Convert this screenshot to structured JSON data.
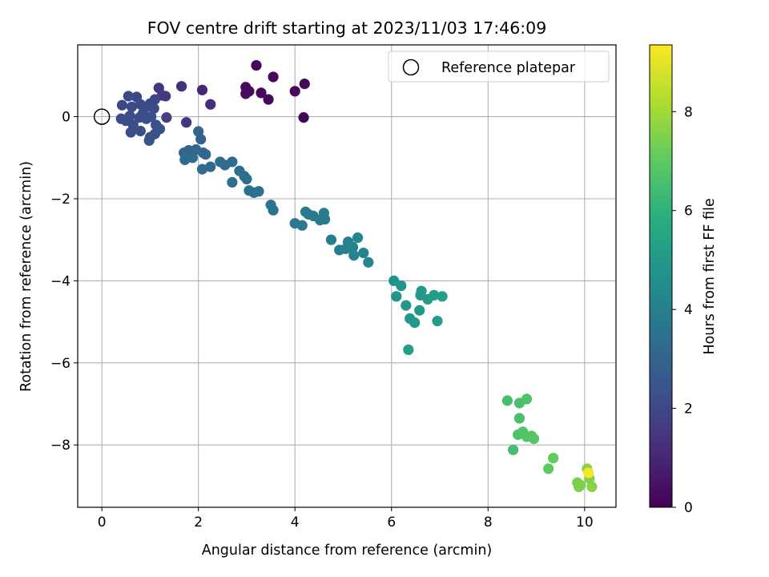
{
  "chart_data": {
    "type": "scatter",
    "title": "FOV centre drift starting at 2023/11/03 17:46:09",
    "xlabel": "Angular distance from reference (arcmin)",
    "ylabel": "Rotation from reference (arcmin)",
    "xlim": [
      -0.5,
      10.65
    ],
    "ylim": [
      -9.52,
      1.75
    ],
    "xticks": [
      0,
      2,
      4,
      6,
      8,
      10
    ],
    "yticks": [
      0,
      -2,
      -4,
      -6,
      -8
    ],
    "grid": true,
    "legend": {
      "position": "top-right",
      "entries": [
        "Reference platepar"
      ]
    },
    "reference_point": {
      "x": 0,
      "y": 0
    },
    "colorbar": {
      "label": "Hours from first FF file",
      "lim": [
        0,
        9.35
      ],
      "ticks": [
        0,
        2,
        4,
        6,
        8
      ],
      "colormap": "viridis"
    },
    "points": [
      {
        "x": 3.2,
        "y": 1.25,
        "h": 0.2
      },
      {
        "x": 3.55,
        "y": 0.97,
        "h": 0.2
      },
      {
        "x": 2.98,
        "y": 0.72,
        "h": 0.3
      },
      {
        "x": 3.05,
        "y": 0.62,
        "h": 0.3
      },
      {
        "x": 2.98,
        "y": 0.56,
        "h": 0.3
      },
      {
        "x": 3.3,
        "y": 0.58,
        "h": 0.2
      },
      {
        "x": 3.45,
        "y": 0.42,
        "h": 0.2
      },
      {
        "x": 4.0,
        "y": 0.62,
        "h": 0.2
      },
      {
        "x": 4.2,
        "y": 0.8,
        "h": 0.2
      },
      {
        "x": 4.18,
        "y": -0.02,
        "h": 0.1
      },
      {
        "x": 2.08,
        "y": 0.65,
        "h": 1.0
      },
      {
        "x": 2.25,
        "y": 0.3,
        "h": 1.2
      },
      {
        "x": 1.65,
        "y": 0.74,
        "h": 1.3
      },
      {
        "x": 1.18,
        "y": 0.7,
        "h": 1.5
      },
      {
        "x": 1.25,
        "y": 0.52,
        "h": 1.6
      },
      {
        "x": 1.32,
        "y": 0.5,
        "h": 1.6
      },
      {
        "x": 1.75,
        "y": -0.14,
        "h": 1.4
      },
      {
        "x": 1.34,
        "y": -0.02,
        "h": 1.8
      },
      {
        "x": 0.55,
        "y": 0.5,
        "h": 2.0
      },
      {
        "x": 0.72,
        "y": 0.48,
        "h": 2.0
      },
      {
        "x": 0.42,
        "y": 0.28,
        "h": 2.0
      },
      {
        "x": 0.62,
        "y": 0.24,
        "h": 2.1
      },
      {
        "x": 0.8,
        "y": 0.3,
        "h": 2.1
      },
      {
        "x": 0.9,
        "y": 0.22,
        "h": 2.1
      },
      {
        "x": 1.0,
        "y": 0.32,
        "h": 2.1
      },
      {
        "x": 1.08,
        "y": 0.2,
        "h": 2.1
      },
      {
        "x": 1.1,
        "y": 0.42,
        "h": 2.0
      },
      {
        "x": 0.4,
        "y": -0.05,
        "h": 2.2
      },
      {
        "x": 0.5,
        "y": -0.1,
        "h": 2.2
      },
      {
        "x": 0.58,
        "y": 0.02,
        "h": 2.2
      },
      {
        "x": 0.65,
        "y": -0.2,
        "h": 2.2
      },
      {
        "x": 0.78,
        "y": -0.02,
        "h": 2.2
      },
      {
        "x": 0.85,
        "y": 0.08,
        "h": 2.2
      },
      {
        "x": 0.92,
        "y": -0.05,
        "h": 2.2
      },
      {
        "x": 1.02,
        "y": 0.0,
        "h": 2.2
      },
      {
        "x": 0.6,
        "y": -0.38,
        "h": 2.2
      },
      {
        "x": 0.8,
        "y": -0.35,
        "h": 2.2
      },
      {
        "x": 1.0,
        "y": -0.5,
        "h": 2.3
      },
      {
        "x": 0.98,
        "y": -0.58,
        "h": 2.3
      },
      {
        "x": 1.1,
        "y": -0.42,
        "h": 2.3
      },
      {
        "x": 1.12,
        "y": -0.2,
        "h": 2.3
      },
      {
        "x": 1.2,
        "y": -0.3,
        "h": 2.3
      },
      {
        "x": 2.0,
        "y": -0.36,
        "h": 3.0
      },
      {
        "x": 2.05,
        "y": -0.55,
        "h": 3.0
      },
      {
        "x": 1.8,
        "y": -0.82,
        "h": 3.0
      },
      {
        "x": 1.95,
        "y": -0.8,
        "h": 3.1
      },
      {
        "x": 2.1,
        "y": -0.88,
        "h": 3.1
      },
      {
        "x": 2.15,
        "y": -0.92,
        "h": 3.1
      },
      {
        "x": 1.7,
        "y": -0.88,
        "h": 3.1
      },
      {
        "x": 1.72,
        "y": -1.05,
        "h": 3.2
      },
      {
        "x": 1.88,
        "y": -1.0,
        "h": 3.2
      },
      {
        "x": 2.08,
        "y": -1.28,
        "h": 3.2
      },
      {
        "x": 2.25,
        "y": -1.22,
        "h": 3.2
      },
      {
        "x": 2.45,
        "y": -1.1,
        "h": 3.3
      },
      {
        "x": 2.55,
        "y": -1.18,
        "h": 3.3
      },
      {
        "x": 2.7,
        "y": -1.1,
        "h": 3.3
      },
      {
        "x": 2.85,
        "y": -1.32,
        "h": 3.4
      },
      {
        "x": 2.95,
        "y": -1.45,
        "h": 3.4
      },
      {
        "x": 3.0,
        "y": -1.52,
        "h": 3.4
      },
      {
        "x": 2.7,
        "y": -1.6,
        "h": 3.4
      },
      {
        "x": 3.05,
        "y": -1.8,
        "h": 3.5
      },
      {
        "x": 3.15,
        "y": -1.85,
        "h": 3.5
      },
      {
        "x": 3.25,
        "y": -1.82,
        "h": 3.5
      },
      {
        "x": 3.5,
        "y": -2.15,
        "h": 3.6
      },
      {
        "x": 3.55,
        "y": -2.28,
        "h": 3.6
      },
      {
        "x": 4.0,
        "y": -2.6,
        "h": 3.7
      },
      {
        "x": 4.15,
        "y": -2.65,
        "h": 3.7
      },
      {
        "x": 4.22,
        "y": -2.32,
        "h": 3.8
      },
      {
        "x": 4.28,
        "y": -2.38,
        "h": 3.8
      },
      {
        "x": 4.38,
        "y": -2.42,
        "h": 3.8
      },
      {
        "x": 4.52,
        "y": -2.52,
        "h": 3.8
      },
      {
        "x": 4.6,
        "y": -2.35,
        "h": 3.9
      },
      {
        "x": 4.62,
        "y": -2.5,
        "h": 3.9
      },
      {
        "x": 4.75,
        "y": -3.0,
        "h": 4.0
      },
      {
        "x": 4.92,
        "y": -3.25,
        "h": 4.0
      },
      {
        "x": 5.05,
        "y": -3.22,
        "h": 4.1
      },
      {
        "x": 5.1,
        "y": -3.05,
        "h": 4.1
      },
      {
        "x": 5.2,
        "y": -3.18,
        "h": 4.1
      },
      {
        "x": 5.22,
        "y": -3.38,
        "h": 4.2
      },
      {
        "x": 5.3,
        "y": -2.95,
        "h": 4.2
      },
      {
        "x": 5.42,
        "y": -3.32,
        "h": 4.2
      },
      {
        "x": 5.52,
        "y": -3.55,
        "h": 4.3
      },
      {
        "x": 6.05,
        "y": -4.0,
        "h": 4.7
      },
      {
        "x": 6.1,
        "y": -4.38,
        "h": 4.8
      },
      {
        "x": 6.2,
        "y": -4.12,
        "h": 4.8
      },
      {
        "x": 6.3,
        "y": -4.6,
        "h": 4.9
      },
      {
        "x": 6.38,
        "y": -4.92,
        "h": 4.9
      },
      {
        "x": 6.48,
        "y": -5.02,
        "h": 4.9
      },
      {
        "x": 6.58,
        "y": -4.72,
        "h": 5.0
      },
      {
        "x": 6.6,
        "y": -4.35,
        "h": 5.0
      },
      {
        "x": 6.62,
        "y": -4.25,
        "h": 5.0
      },
      {
        "x": 6.75,
        "y": -4.45,
        "h": 5.1
      },
      {
        "x": 6.88,
        "y": -4.35,
        "h": 5.1
      },
      {
        "x": 6.95,
        "y": -4.98,
        "h": 5.1
      },
      {
        "x": 7.05,
        "y": -4.38,
        "h": 5.2
      },
      {
        "x": 6.35,
        "y": -5.68,
        "h": 5.1
      },
      {
        "x": 8.4,
        "y": -6.92,
        "h": 6.5
      },
      {
        "x": 8.52,
        "y": -8.12,
        "h": 6.5
      },
      {
        "x": 8.65,
        "y": -6.98,
        "h": 6.6
      },
      {
        "x": 8.65,
        "y": -7.35,
        "h": 6.6
      },
      {
        "x": 8.62,
        "y": -7.75,
        "h": 6.7
      },
      {
        "x": 8.72,
        "y": -7.68,
        "h": 6.7
      },
      {
        "x": 8.8,
        "y": -6.88,
        "h": 6.7
      },
      {
        "x": 8.8,
        "y": -7.8,
        "h": 6.8
      },
      {
        "x": 8.9,
        "y": -7.78,
        "h": 6.8
      },
      {
        "x": 8.95,
        "y": -7.85,
        "h": 6.9
      },
      {
        "x": 9.25,
        "y": -8.58,
        "h": 7.0
      },
      {
        "x": 9.35,
        "y": -8.32,
        "h": 7.1
      },
      {
        "x": 9.85,
        "y": -8.92,
        "h": 7.4
      },
      {
        "x": 9.88,
        "y": -9.02,
        "h": 7.4
      },
      {
        "x": 9.92,
        "y": -8.98,
        "h": 7.5
      },
      {
        "x": 10.1,
        "y": -8.82,
        "h": 7.5
      },
      {
        "x": 10.05,
        "y": -8.58,
        "h": 7.7
      },
      {
        "x": 10.15,
        "y": -9.02,
        "h": 7.6
      },
      {
        "x": 10.08,
        "y": -8.68,
        "h": 9.2
      }
    ]
  }
}
